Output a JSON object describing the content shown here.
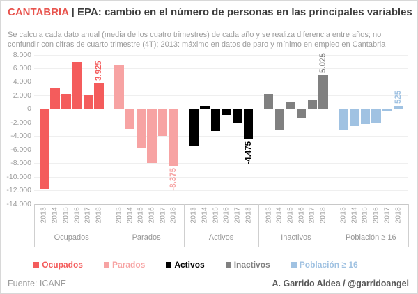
{
  "header": {
    "title_brand": "CANTABRIA",
    "title_sep": " | ",
    "title_rest": "EPA: cambio en el número de personas en las principales variables",
    "subtitle": "Se calcula cada dato anual (media de los cuatro trimestres) de cada año y se realiza diferencia entre años; no confundir con cifras de cuarto trimestre (4T); 2013: máximo en datos de paro y mínimo en empleo en Cantabria"
  },
  "chart_data": {
    "type": "bar",
    "years": [
      "2013",
      "2014",
      "2015",
      "2016",
      "2017",
      "2018"
    ],
    "groups": [
      "Ocupados",
      "Parados",
      "Activos",
      "Inactivos",
      "Población ≥ 16"
    ],
    "series": [
      {
        "key": "ocupados",
        "name": "Ocupados",
        "color": "#f45c5c",
        "values": [
          -11750,
          3100,
          2275,
          6950,
          2025,
          3925
        ],
        "annotation": {
          "year": "2018",
          "text": "3.925"
        }
      },
      {
        "key": "parados",
        "name": "Parados",
        "color": "#f7a3a3",
        "values": [
          6500,
          -2850,
          -5700,
          -7900,
          -3900,
          -8375
        ],
        "annotation": {
          "year": "2018",
          "text": "-8.375"
        }
      },
      {
        "key": "activos",
        "name": "Activos",
        "color": "#000000",
        "values": [
          -5400,
          500,
          -3250,
          -800,
          -2000,
          -4475
        ],
        "annotation": {
          "year": "2018",
          "text": "-4.475"
        }
      },
      {
        "key": "inactivos",
        "name": "Inactivos",
        "color": "#808080",
        "values": [
          2275,
          -2950,
          1000,
          -1400,
          1450,
          5025
        ],
        "annotation": {
          "year": "2018",
          "text": "5.025"
        }
      },
      {
        "key": "poblacion16",
        "name": "Población ≥ 16",
        "color": "#a0c2e2",
        "values": [
          -3100,
          -2450,
          -2150,
          -2000,
          -275,
          525
        ],
        "annotation": {
          "year": "2018",
          "text": "525"
        }
      }
    ],
    "ylim": [
      -14000,
      8000
    ],
    "yticks": [
      8000,
      6000,
      4000,
      2000,
      0,
      -2000,
      -4000,
      -6000,
      -8000,
      -10000,
      -12000,
      -14000
    ],
    "ytick_labels": [
      "8.000",
      "6.000",
      "4.000",
      "2.000",
      "0",
      "-2.000",
      "-4.000",
      "-6.000",
      "-8.000",
      "-10.000",
      "-12.000",
      "-14.000"
    ],
    "grid": true,
    "legend_position": "bottom"
  },
  "legend": {
    "items": [
      {
        "key": "ocupados",
        "label": "Ocupados",
        "color": "#f45c5c"
      },
      {
        "key": "parados",
        "label": "Parados",
        "color": "#f7a3a3"
      },
      {
        "key": "activos",
        "label": "Activos",
        "color": "#000000"
      },
      {
        "key": "inactivos",
        "label": "Inactivos",
        "color": "#808080"
      },
      {
        "key": "poblacion16",
        "label": "Población ≥ 16",
        "color": "#a0c2e2"
      }
    ]
  },
  "footer": {
    "source": "Fuente: ICANE",
    "credit": "A. Garrido Aldea / @garridoangel"
  }
}
